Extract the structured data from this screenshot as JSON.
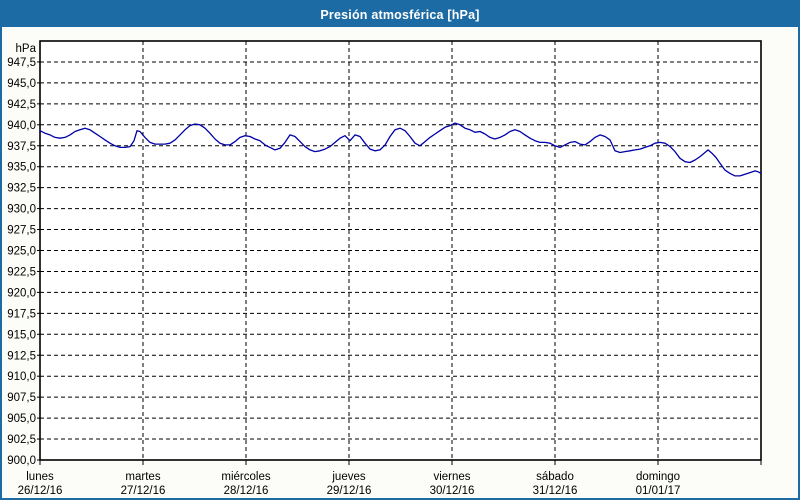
{
  "window": {
    "title": "Presión atmosférica [hPa]",
    "titlebar_color": "#1d6ba4",
    "border_color": "#1d6ba4",
    "background_color": "#fcfdf8"
  },
  "chart_data": {
    "type": "line",
    "title": "Presión atmosférica [hPa]",
    "grid": {
      "horizontal": true,
      "vertical": true,
      "style": "dashed",
      "color": "#000000"
    },
    "plot_background": "#ffffff",
    "y_axis": {
      "unit_label": "hPa",
      "min": 900,
      "max": 950,
      "tick_step": 2.5,
      "tick_labels": [
        "947,5",
        "945,0",
        "942,5",
        "940,0",
        "937,5",
        "935,0",
        "932,5",
        "930,0",
        "927,5",
        "925,0",
        "922,5",
        "920,0",
        "917,5",
        "915,0",
        "912,5",
        "910,0",
        "907,5",
        "905,0",
        "902,5",
        "900,0"
      ]
    },
    "x_axis": {
      "days": [
        {
          "name": "lunes",
          "date": "26/12/16"
        },
        {
          "name": "martes",
          "date": "27/12/16"
        },
        {
          "name": "miércoles",
          "date": "28/12/16"
        },
        {
          "name": "jueves",
          "date": "29/12/16"
        },
        {
          "name": "viernes",
          "date": "30/12/16"
        },
        {
          "name": "sábado",
          "date": "31/12/16"
        },
        {
          "name": "domingo",
          "date": "01/01/17"
        }
      ]
    },
    "series": [
      {
        "name": "Presión atmosférica [hPa]",
        "color": "#0000a8",
        "x_unit": "days_from_start",
        "points": [
          [
            0.0,
            939.3
          ],
          [
            0.049,
            939.0
          ],
          [
            0.097,
            938.8
          ],
          [
            0.146,
            938.5
          ],
          [
            0.194,
            938.4
          ],
          [
            0.243,
            938.5
          ],
          [
            0.291,
            938.8
          ],
          [
            0.34,
            939.2
          ],
          [
            0.388,
            939.4
          ],
          [
            0.437,
            939.6
          ],
          [
            0.485,
            939.4
          ],
          [
            0.534,
            939.0
          ],
          [
            0.583,
            938.6
          ],
          [
            0.631,
            938.2
          ],
          [
            0.68,
            937.8
          ],
          [
            0.728,
            937.5
          ],
          [
            0.777,
            937.3
          ],
          [
            0.825,
            937.3
          ],
          [
            0.874,
            937.4
          ],
          [
            0.913,
            938.1
          ],
          [
            0.942,
            939.3
          ],
          [
            0.971,
            939.2
          ],
          [
            1.019,
            938.5
          ],
          [
            1.068,
            937.9
          ],
          [
            1.117,
            937.7
          ],
          [
            1.165,
            937.7
          ],
          [
            1.214,
            937.7
          ],
          [
            1.262,
            937.8
          ],
          [
            1.311,
            938.2
          ],
          [
            1.359,
            938.8
          ],
          [
            1.408,
            939.4
          ],
          [
            1.456,
            939.9
          ],
          [
            1.505,
            940.1
          ],
          [
            1.553,
            940.0
          ],
          [
            1.602,
            939.6
          ],
          [
            1.65,
            939.0
          ],
          [
            1.699,
            938.3
          ],
          [
            1.748,
            937.8
          ],
          [
            1.796,
            937.6
          ],
          [
            1.845,
            937.6
          ],
          [
            1.893,
            938.0
          ],
          [
            1.942,
            938.5
          ],
          [
            1.99,
            938.7
          ],
          [
            2.039,
            938.6
          ],
          [
            2.087,
            938.3
          ],
          [
            2.136,
            938.1
          ],
          [
            2.184,
            937.6
          ],
          [
            2.233,
            937.3
          ],
          [
            2.282,
            937.0
          ],
          [
            2.33,
            937.2
          ],
          [
            2.379,
            937.9
          ],
          [
            2.427,
            938.8
          ],
          [
            2.476,
            938.6
          ],
          [
            2.524,
            938.0
          ],
          [
            2.573,
            937.4
          ],
          [
            2.621,
            937.0
          ],
          [
            2.67,
            936.8
          ],
          [
            2.718,
            936.9
          ],
          [
            2.767,
            937.1
          ],
          [
            2.816,
            937.4
          ],
          [
            2.864,
            937.9
          ],
          [
            2.913,
            938.4
          ],
          [
            2.961,
            938.7
          ],
          [
            3.01,
            938.1
          ],
          [
            3.058,
            938.8
          ],
          [
            3.107,
            938.6
          ],
          [
            3.155,
            937.8
          ],
          [
            3.204,
            937.1
          ],
          [
            3.252,
            936.9
          ],
          [
            3.301,
            937.0
          ],
          [
            3.35,
            937.6
          ],
          [
            3.398,
            938.6
          ],
          [
            3.447,
            939.4
          ],
          [
            3.495,
            939.6
          ],
          [
            3.544,
            939.3
          ],
          [
            3.592,
            938.6
          ],
          [
            3.641,
            937.8
          ],
          [
            3.689,
            937.5
          ],
          [
            3.738,
            938.0
          ],
          [
            3.786,
            938.5
          ],
          [
            3.835,
            938.9
          ],
          [
            3.883,
            939.3
          ],
          [
            3.932,
            939.7
          ],
          [
            3.981,
            939.9
          ],
          [
            4.029,
            940.2
          ],
          [
            4.078,
            940.0
          ],
          [
            4.126,
            939.6
          ],
          [
            4.175,
            939.4
          ],
          [
            4.223,
            939.1
          ],
          [
            4.272,
            939.2
          ],
          [
            4.32,
            938.9
          ],
          [
            4.369,
            938.5
          ],
          [
            4.417,
            938.3
          ],
          [
            4.466,
            938.5
          ],
          [
            4.515,
            938.8
          ],
          [
            4.563,
            939.2
          ],
          [
            4.612,
            939.4
          ],
          [
            4.66,
            939.2
          ],
          [
            4.709,
            938.8
          ],
          [
            4.757,
            938.4
          ],
          [
            4.806,
            938.1
          ],
          [
            4.854,
            937.9
          ],
          [
            4.903,
            937.9
          ],
          [
            4.951,
            937.8
          ],
          [
            5.0,
            937.5
          ],
          [
            5.049,
            937.3
          ],
          [
            5.097,
            937.6
          ],
          [
            5.146,
            937.9
          ],
          [
            5.194,
            938.0
          ],
          [
            5.243,
            937.7
          ],
          [
            5.291,
            937.6
          ],
          [
            5.34,
            938.0
          ],
          [
            5.388,
            938.5
          ],
          [
            5.437,
            938.8
          ],
          [
            5.485,
            938.6
          ],
          [
            5.534,
            938.2
          ],
          [
            5.583,
            936.9
          ],
          [
            5.631,
            936.7
          ],
          [
            5.68,
            936.8
          ],
          [
            5.728,
            936.9
          ],
          [
            5.777,
            937.0
          ],
          [
            5.825,
            937.1
          ],
          [
            5.874,
            937.3
          ],
          [
            5.922,
            937.5
          ],
          [
            5.971,
            937.8
          ],
          [
            6.019,
            937.9
          ],
          [
            6.068,
            937.8
          ],
          [
            6.117,
            937.4
          ],
          [
            6.165,
            936.8
          ],
          [
            6.214,
            936.0
          ],
          [
            6.262,
            935.6
          ],
          [
            6.311,
            935.5
          ],
          [
            6.359,
            935.8
          ],
          [
            6.408,
            936.2
          ],
          [
            6.456,
            936.7
          ],
          [
            6.485,
            937.0
          ],
          [
            6.524,
            936.6
          ],
          [
            6.563,
            936.1
          ],
          [
            6.602,
            935.4
          ],
          [
            6.65,
            934.6
          ],
          [
            6.699,
            934.2
          ],
          [
            6.748,
            933.9
          ],
          [
            6.796,
            933.9
          ],
          [
            6.845,
            934.1
          ],
          [
            6.893,
            934.3
          ],
          [
            6.942,
            934.5
          ],
          [
            6.971,
            934.4
          ],
          [
            7.0,
            934.2
          ]
        ]
      }
    ]
  }
}
